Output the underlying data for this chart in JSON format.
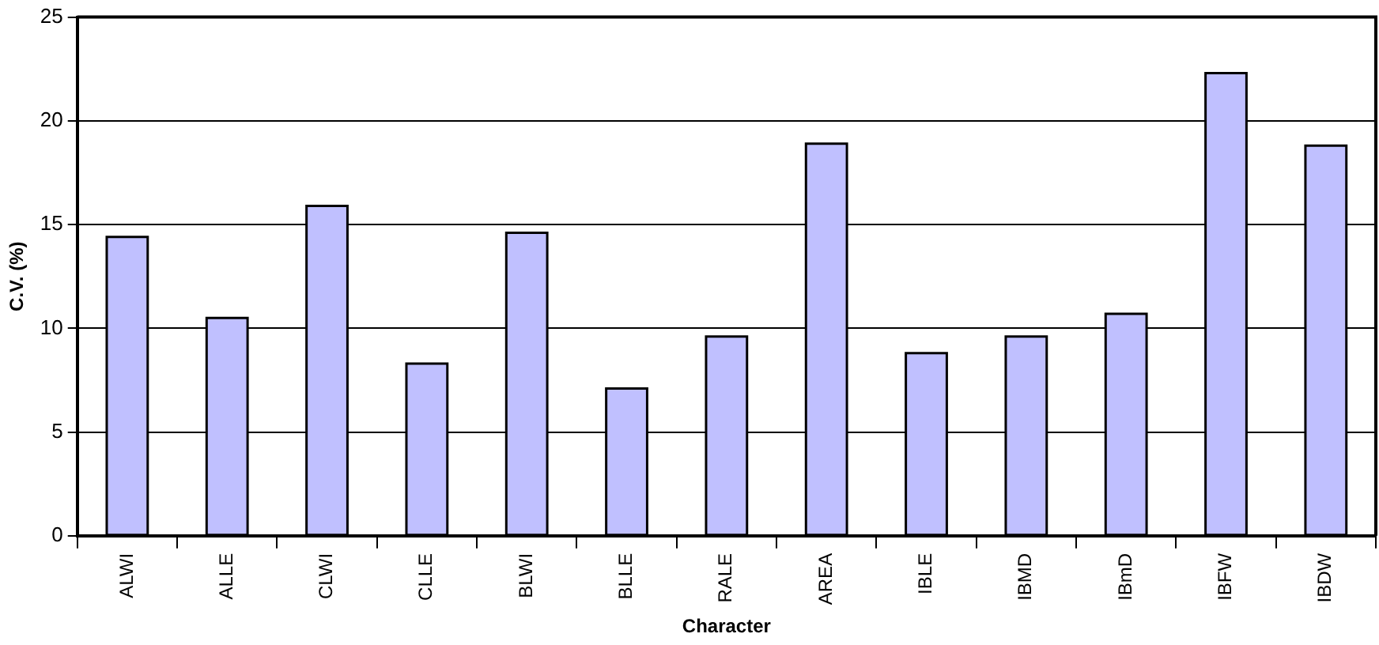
{
  "chart_data": {
    "type": "bar",
    "xlabel": "Character",
    "ylabel": "C.V. (%)",
    "categories": [
      "ALWI",
      "ALLE",
      "CLWI",
      "CLLE",
      "BLWI",
      "BLLE",
      "RALE",
      "AREA",
      "IBLE",
      "IBMD",
      "IBmD",
      "IBFW",
      "IBDW"
    ],
    "values": [
      14.4,
      10.5,
      15.9,
      8.3,
      14.6,
      7.1,
      9.6,
      18.9,
      8.8,
      9.6,
      10.7,
      22.3,
      18.8
    ],
    "color": "#c0c0ff",
    "ylim": [
      0,
      25
    ],
    "yticks": [
      0,
      5,
      10,
      15,
      20,
      25
    ],
    "grid": "y",
    "legend": false
  }
}
